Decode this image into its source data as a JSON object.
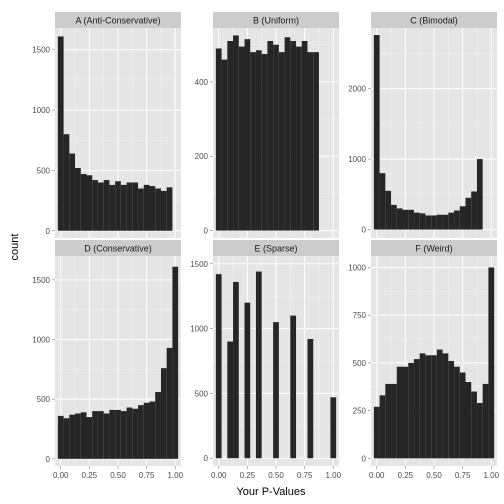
{
  "chart_data": {
    "type": "bar",
    "facet_layout": "3 columns x 2 rows, free y scales",
    "xlabel": "Your P-Values",
    "ylabel": "count",
    "x_bins": [
      0.0,
      0.05,
      0.1,
      0.15,
      0.2,
      0.25,
      0.3,
      0.35,
      0.4,
      0.45,
      0.5,
      0.55,
      0.6,
      0.65,
      0.7,
      0.75,
      0.8,
      0.85,
      0.9,
      0.95,
      1.0
    ],
    "x_ticks": [
      "0.00",
      "0.25",
      "0.50",
      "0.75",
      "1.00"
    ],
    "xlim": [
      -0.05,
      1.05
    ],
    "grid": true,
    "colors": {
      "panel_background": "#e5e5e5",
      "grid_major": "#ffffff",
      "grid_minor": "#f2f2f2",
      "strip_background": "#cccccc",
      "bar_fill": "#262626"
    },
    "panels": [
      {
        "title": "A (Anti-Conservative)",
        "ylim": [
          -60,
          1680
        ],
        "y_ticks": [
          0,
          500,
          1000,
          1500
        ],
        "values": [
          1610,
          800,
          640,
          520,
          470,
          460,
          420,
          400,
          420,
          380,
          410,
          380,
          400,
          400,
          350,
          380,
          370,
          350,
          330,
          360,
          0
        ]
      },
      {
        "title": "B (Uniform)",
        "ylim": [
          -20,
          545
        ],
        "y_ticks": [
          0,
          200,
          400
        ],
        "values": [
          490,
          460,
          510,
          525,
          495,
          515,
          480,
          485,
          475,
          510,
          500,
          480,
          520,
          510,
          495,
          510,
          480,
          480,
          0,
          0,
          0
        ]
      },
      {
        "title": "C (Bimodal)",
        "ylim": [
          -120,
          2860
        ],
        "y_ticks": [
          0,
          1000,
          2000
        ],
        "values": [
          2760,
          800,
          550,
          350,
          300,
          280,
          280,
          240,
          230,
          200,
          200,
          210,
          210,
          240,
          270,
          330,
          450,
          540,
          1000,
          0,
          0
        ]
      },
      {
        "title": "D (Conservative)",
        "ylim": [
          -60,
          1700
        ],
        "y_ticks": [
          0,
          500,
          1000,
          1500
        ],
        "values": [
          360,
          340,
          370,
          380,
          390,
          350,
          400,
          400,
          380,
          410,
          410,
          400,
          430,
          420,
          450,
          470,
          480,
          560,
          760,
          930,
          1610
        ]
      },
      {
        "title": "E (Sparse)",
        "ylim": [
          -60,
          1560
        ],
        "y_ticks": [
          0,
          500,
          1000,
          1500
        ],
        "values": [
          1420,
          0,
          900,
          1360,
          0,
          1200,
          0,
          1440,
          0,
          0,
          1050,
          0,
          0,
          1100,
          0,
          0,
          920,
          0,
          0,
          0,
          470
        ]
      },
      {
        "title": "F (Weird)",
        "ylim": [
          -40,
          1060
        ],
        "y_ticks": [
          0,
          250,
          500,
          750,
          1000
        ],
        "values": [
          270,
          330,
          390,
          390,
          480,
          480,
          500,
          520,
          550,
          540,
          540,
          570,
          550,
          510,
          480,
          450,
          400,
          350,
          290,
          390,
          1000
        ]
      }
    ]
  }
}
